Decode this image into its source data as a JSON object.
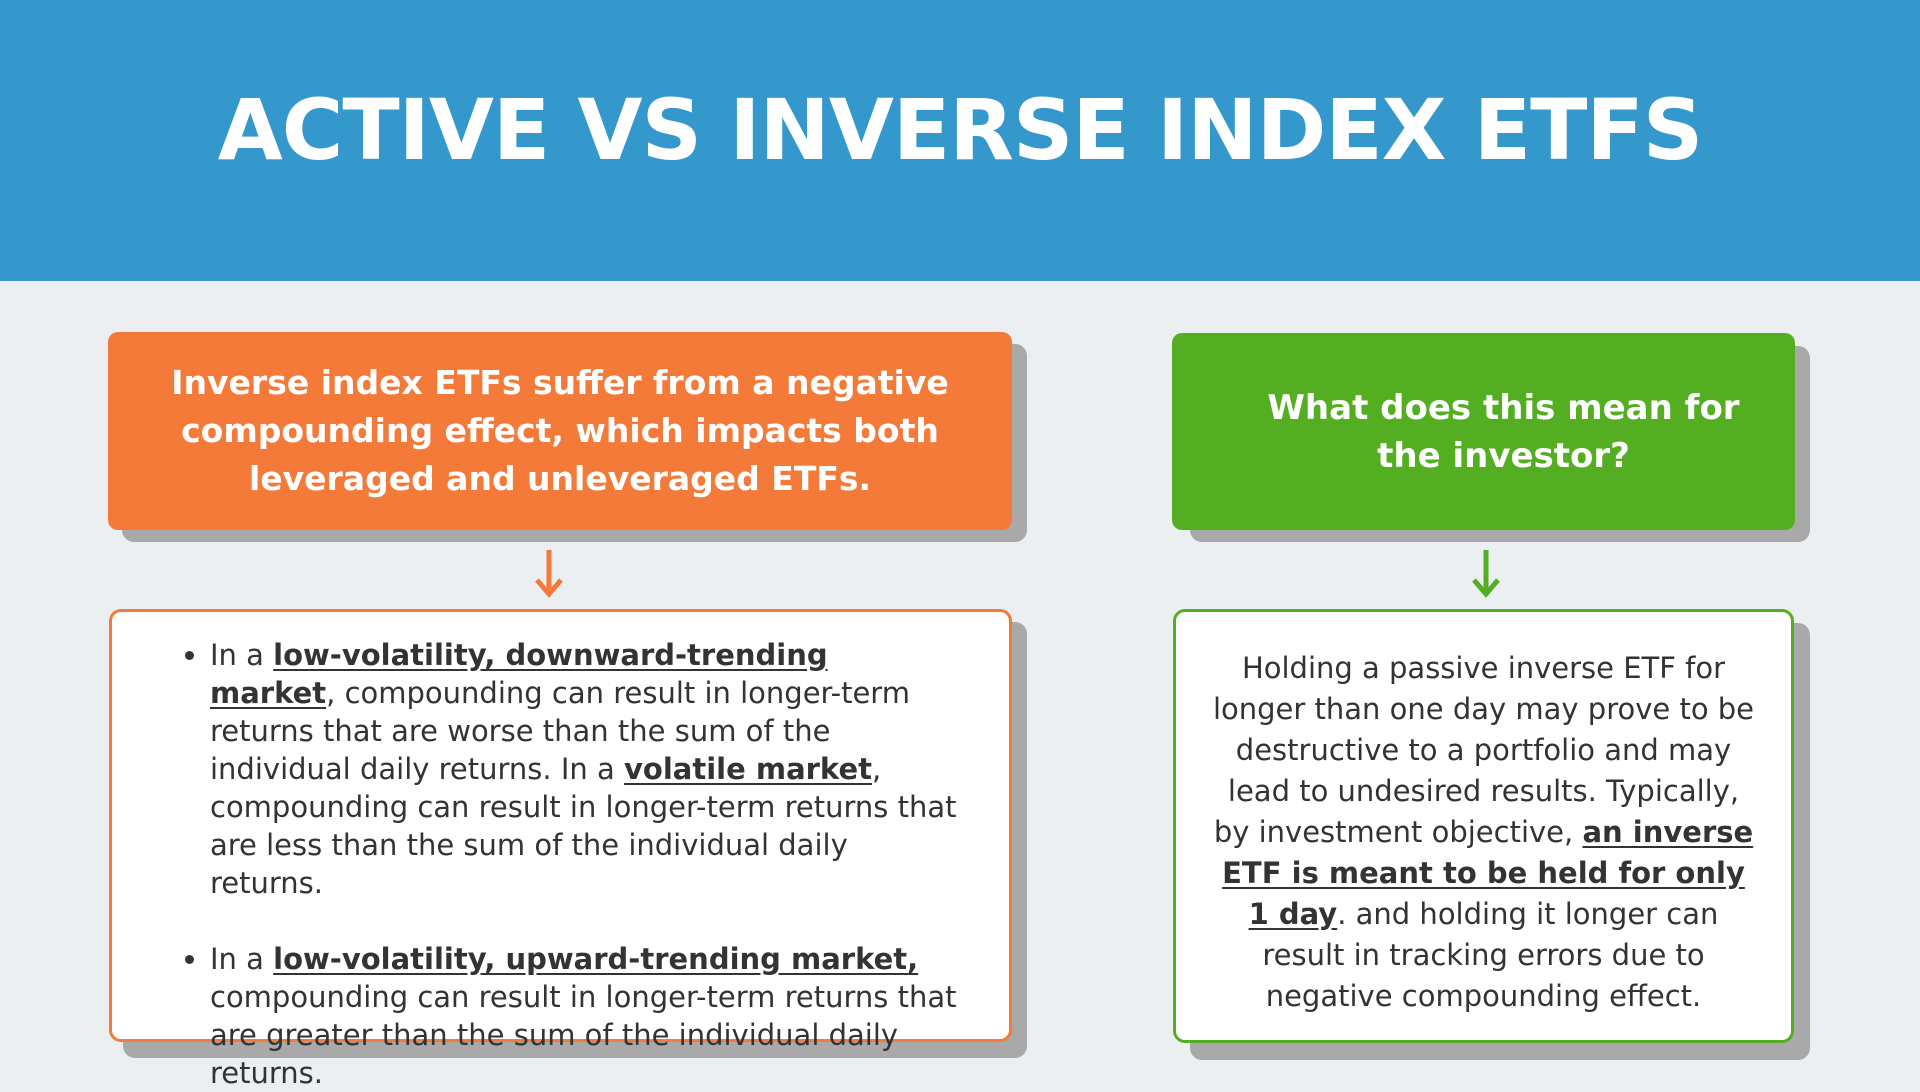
{
  "title": "ACTIVE VS INVERSE INDEX ETFS",
  "colors": {
    "header": "#3598cd",
    "background": "#eceff2",
    "orange": "#f47a3a",
    "green": "#54ae22",
    "shadow": "#a9a9a9",
    "text": "#333333"
  },
  "left_panel": {
    "heading": "Inverse index ETFs suffer from a negative compounding effect, which impacts both leveraged and unleveraged ETFs.",
    "arrow_icon": "arrow-down",
    "bullets": [
      {
        "lead": "In a ",
        "emphasis": "low-volatility, downward-trending market",
        "rest_1": ", compounding can result in longer-term returns that are worse than the sum of the individual daily returns. In a ",
        "emphasis_2": "volatile market",
        "rest_2": ", compounding can result in longer-term returns that are less than the sum of the individual daily returns."
      },
      {
        "lead": "In a ",
        "emphasis": "low-volatility, upward-trending market,",
        "rest_1": " com­pounding can result in longer-term returns that are greater than the sum of the individual daily returns."
      }
    ]
  },
  "right_panel": {
    "heading": "What does this mean for the investor?",
    "arrow_icon": "arrow-down",
    "text_before": "Holding a passive inverse ETF for longer than one day may prove to be destructive to a portfolio and may lead to undesired results. Typically, by investment objective, ",
    "emphasis": "an inverse ETF is meant to be held for only 1 day",
    "text_after": ". and holding it longer can result in tracking errors due to negative compounding effect."
  }
}
